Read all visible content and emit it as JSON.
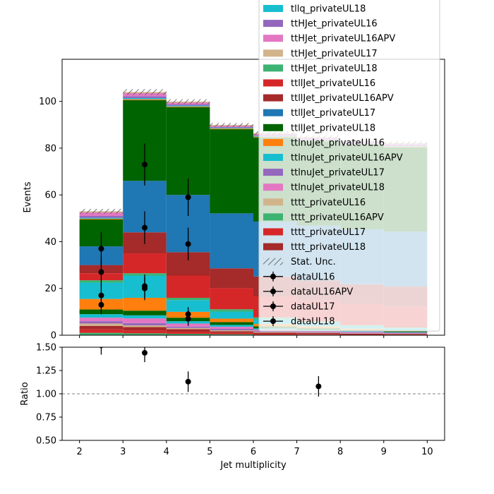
{
  "chart_data": [
    {
      "type": "bar",
      "stacked": true,
      "xlabel": "",
      "ylabel": "Events",
      "xlim": [
        1.6,
        10.4
      ],
      "ylim": [
        0,
        118
      ],
      "yticks": [
        0,
        20,
        40,
        60,
        80,
        100
      ],
      "bin_edges": [
        2,
        3,
        4,
        5,
        6,
        7,
        8,
        9,
        10
      ],
      "colors": {
        "teal": "#17becf",
        "purple": "#9467bd",
        "pink": "#e377c2",
        "tan": "#d2b48c",
        "green": "#3cb371",
        "red": "#d62728",
        "brown": "#a52a2a",
        "blue": "#1f77b4",
        "darkgreen": "#006400",
        "orange": "#ff7f0e"
      },
      "layers": [
        {
          "color": "#3cb371",
          "values": [
            1.0,
            0.8,
            0.6,
            0.4,
            0.2,
            0.2,
            0.1,
            0.1
          ]
        },
        {
          "color": "#d62728",
          "values": [
            1.5,
            1.2,
            0.9,
            0.6,
            0.4,
            0.3,
            0.2,
            0.2
          ]
        },
        {
          "color": "#a52a2a",
          "values": [
            1.5,
            1.5,
            1.1,
            0.7,
            0.5,
            0.4,
            0.3,
            0.2
          ]
        },
        {
          "color": "#d2b48c",
          "values": [
            1.0,
            0.7,
            0.5,
            0.4,
            0.3,
            0.2,
            0.2,
            0.1
          ]
        },
        {
          "color": "#9467bd",
          "values": [
            1.0,
            1.0,
            0.6,
            0.6,
            0.4,
            0.3,
            0.2,
            0.2
          ]
        },
        {
          "color": "#e377c2",
          "values": [
            1.5,
            2.0,
            1.3,
            0.9,
            0.6,
            0.5,
            0.4,
            0.3
          ]
        },
        {
          "color": "#17becf",
          "values": [
            1.5,
            1.3,
            1.0,
            0.8,
            0.5,
            0.4,
            0.3,
            0.2
          ]
        },
        {
          "color": "#006400",
          "values": [
            2.0,
            2.0,
            1.5,
            1.2,
            0.9,
            0.7,
            0.5,
            0.4
          ]
        },
        {
          "color": "#ff7f0e",
          "values": [
            4.5,
            5.5,
            2.5,
            1.5,
            1.0,
            0.8,
            0.6,
            0.4
          ]
        },
        {
          "color": "#17becf",
          "values": [
            7.0,
            9.5,
            5.0,
            3.0,
            2.0,
            1.5,
            1.0,
            0.8
          ]
        },
        {
          "color": "#3cb371",
          "values": [
            1.0,
            1.0,
            1.0,
            1.0,
            0.8,
            0.6,
            0.5,
            0.4
          ]
        },
        {
          "color": "#d62728",
          "values": [
            3.0,
            8.5,
            9.5,
            9.0,
            9.0,
            9.0,
            9.0,
            9.0
          ]
        },
        {
          "color": "#a52a2a",
          "values": [
            3.5,
            9.0,
            10.0,
            8.5,
            8.5,
            8.5,
            8.5,
            8.5
          ]
        },
        {
          "color": "#1f77b4",
          "values": [
            8.0,
            22.0,
            24.5,
            23.5,
            23.5,
            23.5,
            23.5,
            23.5
          ]
        },
        {
          "color": "#006400",
          "values": [
            11.5,
            34.5,
            37.5,
            36.0,
            36.0,
            36.0,
            36.0,
            36.0
          ]
        },
        {
          "color": "#ff7f0e",
          "values": [
            0.3,
            0.4,
            0.3,
            0.3,
            0.3,
            0.3,
            0.3,
            0.3
          ]
        },
        {
          "color": "#17becf",
          "values": [
            0.4,
            0.5,
            0.4,
            0.3,
            0.3,
            0.3,
            0.3,
            0.3
          ]
        },
        {
          "color": "#9467bd",
          "values": [
            0.8,
            0.8,
            0.5,
            0.3,
            0.3,
            0.3,
            0.3,
            0.3
          ]
        },
        {
          "color": "#e377c2",
          "values": [
            1.5,
            1.3,
            0.8,
            0.5,
            0.5,
            0.5,
            0.5,
            0.5
          ]
        },
        {
          "color": "#d2b48c",
          "values": [
            0.5,
            0.5,
            0.4,
            0.4,
            0.4,
            0.4,
            0.4,
            0.4
          ]
        }
      ],
      "stat_unc": [
        1.0,
        1.2,
        1.0,
        0.8,
        0.8,
        0.8,
        0.8,
        0.8
      ],
      "data_points": [
        {
          "x": 2.5,
          "y": 37,
          "yerr": 7
        },
        {
          "x": 2.5,
          "y": 27,
          "yerr": 6
        },
        {
          "x": 2.5,
          "y": 17,
          "yerr": 5
        },
        {
          "x": 2.5,
          "y": 13,
          "yerr": 4
        },
        {
          "x": 3.5,
          "y": 73,
          "yerr": 9
        },
        {
          "x": 3.5,
          "y": 46,
          "yerr": 7
        },
        {
          "x": 3.5,
          "y": 21,
          "yerr": 5
        },
        {
          "x": 3.5,
          "y": 20,
          "yerr": 5
        },
        {
          "x": 4.5,
          "y": 59,
          "yerr": 8
        },
        {
          "x": 4.5,
          "y": 39,
          "yerr": 7
        },
        {
          "x": 4.5,
          "y": 9,
          "yerr": 3
        },
        {
          "x": 4.5,
          "y": 7,
          "yerr": 3
        }
      ],
      "legend": {
        "placement": "upper-right, extending above the axes",
        "entries": [
          {
            "label": "tllq_privateUL18",
            "color": "#17becf",
            "kind": "patch"
          },
          {
            "label": "ttHJet_privateUL16",
            "color": "#9467bd",
            "kind": "patch"
          },
          {
            "label": "ttHJet_privateUL16APV",
            "color": "#e377c2",
            "kind": "patch"
          },
          {
            "label": "ttHJet_privateUL17",
            "color": "#d2b48c",
            "kind": "patch"
          },
          {
            "label": "ttHJet_privateUL18",
            "color": "#3cb371",
            "kind": "patch"
          },
          {
            "label": "ttllJet_privateUL16",
            "color": "#d62728",
            "kind": "patch"
          },
          {
            "label": "ttllJet_privateUL16APV",
            "color": "#a52a2a",
            "kind": "patch"
          },
          {
            "label": "ttllJet_privateUL17",
            "color": "#1f77b4",
            "kind": "patch"
          },
          {
            "label": "ttllJet_privateUL18",
            "color": "#006400",
            "kind": "patch"
          },
          {
            "label": "ttlnuJet_privateUL16",
            "color": "#ff7f0e",
            "kind": "patch"
          },
          {
            "label": "ttlnuJet_privateUL16APV",
            "color": "#17becf",
            "kind": "patch"
          },
          {
            "label": "ttlnuJet_privateUL17",
            "color": "#9467bd",
            "kind": "patch"
          },
          {
            "label": "ttlnuJet_privateUL18",
            "color": "#e377c2",
            "kind": "patch"
          },
          {
            "label": "tttt_privateUL16",
            "color": "#d2b48c",
            "kind": "patch"
          },
          {
            "label": "tttt_privateUL16APV",
            "color": "#3cb371",
            "kind": "patch"
          },
          {
            "label": "tttt_privateUL17",
            "color": "#d62728",
            "kind": "patch"
          },
          {
            "label": "tttt_privateUL18",
            "color": "#a52a2a",
            "kind": "patch"
          },
          {
            "label": "Stat. Unc.",
            "color": "#555555",
            "kind": "hatch"
          },
          {
            "label": "dataUL16",
            "color": "#000000",
            "kind": "errorbar"
          },
          {
            "label": "dataUL16APV",
            "color": "#000000",
            "kind": "errorbar"
          },
          {
            "label": "dataUL17",
            "color": "#000000",
            "kind": "errorbar"
          },
          {
            "label": "dataUL18",
            "color": "#000000",
            "kind": "errorbar"
          }
        ]
      }
    },
    {
      "type": "scatter",
      "xlabel": "Jet multiplicity",
      "ylabel": "Ratio",
      "xlim": [
        1.6,
        10.4
      ],
      "ylim": [
        0.5,
        1.5
      ],
      "xticks": [
        2,
        3,
        4,
        5,
        6,
        7,
        8,
        9,
        10
      ],
      "yticks": [
        "0.50",
        "0.75",
        "1.00",
        "1.25",
        "1.50"
      ],
      "reference_line": 1.0,
      "points": [
        {
          "x": 2.5,
          "y": 1.52,
          "yerr": 0.1
        },
        {
          "x": 3.5,
          "y": 1.44,
          "yerr": 0.1
        },
        {
          "x": 4.5,
          "y": 1.13,
          "yerr": 0.11
        },
        {
          "x": 7.5,
          "y": 1.08,
          "yerr": 0.11
        }
      ]
    }
  ]
}
